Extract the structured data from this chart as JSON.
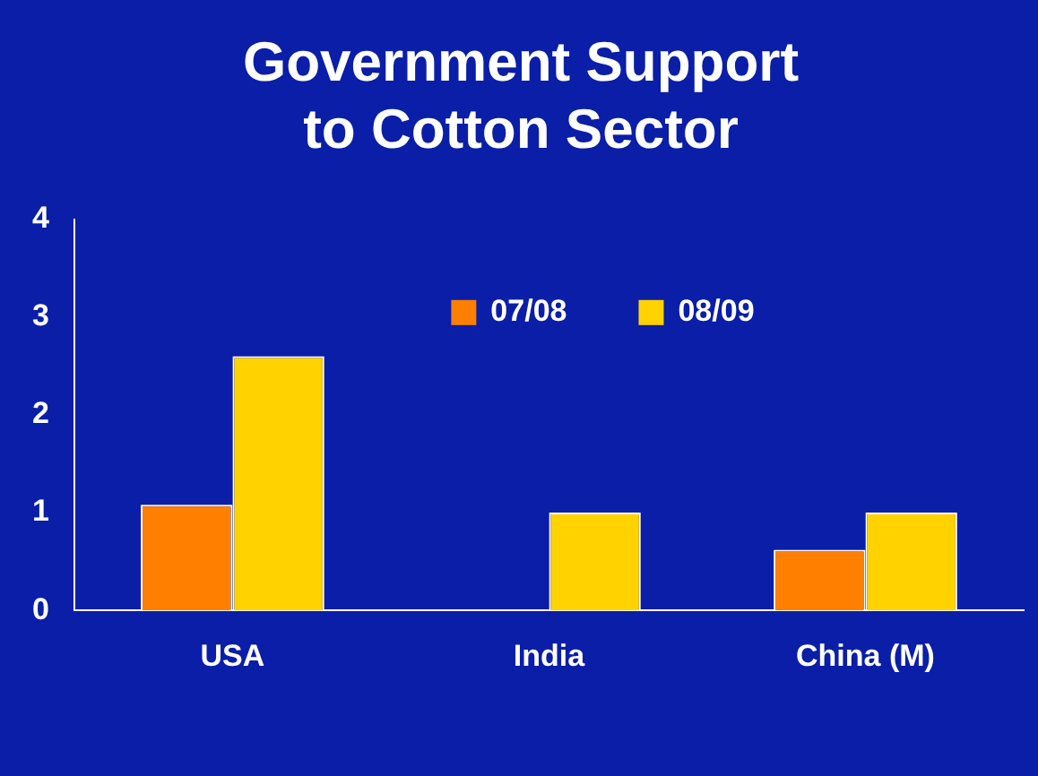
{
  "chart_data": {
    "type": "bar",
    "title": "Government Support to Cotton Sector",
    "categories": [
      "USA",
      "India",
      "China (M)"
    ],
    "series": [
      {
        "name": "07/08",
        "color": "#ff8000",
        "values": [
          1.08,
          null,
          0.62
        ]
      },
      {
        "name": "08/09",
        "color": "#ffd200",
        "values": [
          2.6,
          1.0,
          1.0
        ]
      }
    ],
    "ylim": [
      0,
      4
    ],
    "yticks": [
      0,
      1,
      2,
      3,
      4
    ],
    "grid": false,
    "legend": "top"
  }
}
